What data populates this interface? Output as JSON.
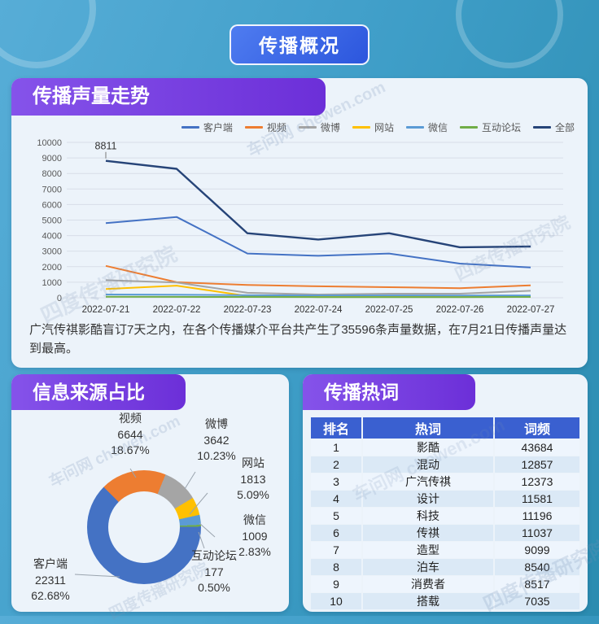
{
  "page": {
    "title_button": "传播概况"
  },
  "sections": {
    "volume_trend": {
      "title": "传播声量走势",
      "description": "广汽传祺影酷盲订7天之内，在各个传播媒介平台共产生了35596条声量数据，在7月21日传播声量达到最高。"
    },
    "source_share": {
      "title": "信息来源占比"
    },
    "hot_words": {
      "title": "传播热词"
    }
  },
  "watermarks": {
    "brand": "车问网 chewen.com",
    "institute": "四度传播研究院"
  },
  "chart_data": [
    {
      "id": "volume_trend",
      "type": "line",
      "title": "传播声量走势",
      "x": [
        "2022-07-21",
        "2022-07-22",
        "2022-07-23",
        "2022-07-24",
        "2022-07-25",
        "2022-07-26",
        "2022-07-27"
      ],
      "series": [
        {
          "name": "客户端",
          "color": "#4472C4",
          "values": [
            4800,
            5200,
            2850,
            2700,
            2850,
            2200,
            1950
          ]
        },
        {
          "name": "视频",
          "color": "#ED7D31",
          "values": [
            2050,
            1000,
            820,
            740,
            680,
            620,
            800
          ]
        },
        {
          "name": "微博",
          "color": "#A5A5A5",
          "values": [
            1130,
            980,
            320,
            210,
            260,
            260,
            450
          ]
        },
        {
          "name": "网站",
          "color": "#FFC000",
          "values": [
            560,
            780,
            110,
            100,
            130,
            90,
            100
          ]
        },
        {
          "name": "微信",
          "color": "#5B9BD5",
          "values": [
            210,
            200,
            160,
            150,
            150,
            140,
            150
          ]
        },
        {
          "name": "互动论坛",
          "color": "#70AD47",
          "values": [
            70,
            60,
            50,
            40,
            40,
            40,
            50
          ]
        },
        {
          "name": "全部",
          "color": "#264478",
          "values": [
            8811,
            8300,
            4150,
            3750,
            4150,
            3250,
            3300
          ]
        }
      ],
      "ylim": [
        0,
        10000
      ],
      "ytick_step": 1000,
      "grid": true,
      "legend_position": "top",
      "annotation": {
        "text": "8811",
        "series": "全部",
        "x_index": 0
      }
    },
    {
      "id": "source_share",
      "type": "pie",
      "title": "信息来源占比",
      "donut": true,
      "start_angle_deg": 315,
      "order_clockwise": [
        "视频",
        "微博",
        "网站",
        "微信",
        "互动论坛",
        "客户端"
      ],
      "slices": [
        {
          "name": "客户端",
          "value": 22311,
          "pct": "62.68%",
          "color": "#4472C4"
        },
        {
          "name": "视频",
          "value": 6644,
          "pct": "18.67%",
          "color": "#ED7D31"
        },
        {
          "name": "微博",
          "value": 3642,
          "pct": "10.23%",
          "color": "#A5A5A5"
        },
        {
          "name": "网站",
          "value": 1813,
          "pct": "5.09%",
          "color": "#FFC000"
        },
        {
          "name": "微信",
          "value": 1009,
          "pct": "2.83%",
          "color": "#5B9BD5"
        },
        {
          "name": "互动论坛",
          "value": 177,
          "pct": "0.50%",
          "color": "#70AD47"
        }
      ]
    },
    {
      "id": "hot_words",
      "type": "table",
      "title": "传播热词",
      "columns": [
        "排名",
        "热词",
        "词频"
      ],
      "rows": [
        [
          1,
          "影酷",
          43684
        ],
        [
          2,
          "混动",
          12857
        ],
        [
          3,
          "广汽传祺",
          12373
        ],
        [
          4,
          "设计",
          11581
        ],
        [
          5,
          "科技",
          11196
        ],
        [
          6,
          "传祺",
          11037
        ],
        [
          7,
          "造型",
          9099
        ],
        [
          8,
          "泊车",
          8540
        ],
        [
          9,
          "消费者",
          8517
        ],
        [
          10,
          "搭载",
          7035
        ]
      ]
    }
  ]
}
